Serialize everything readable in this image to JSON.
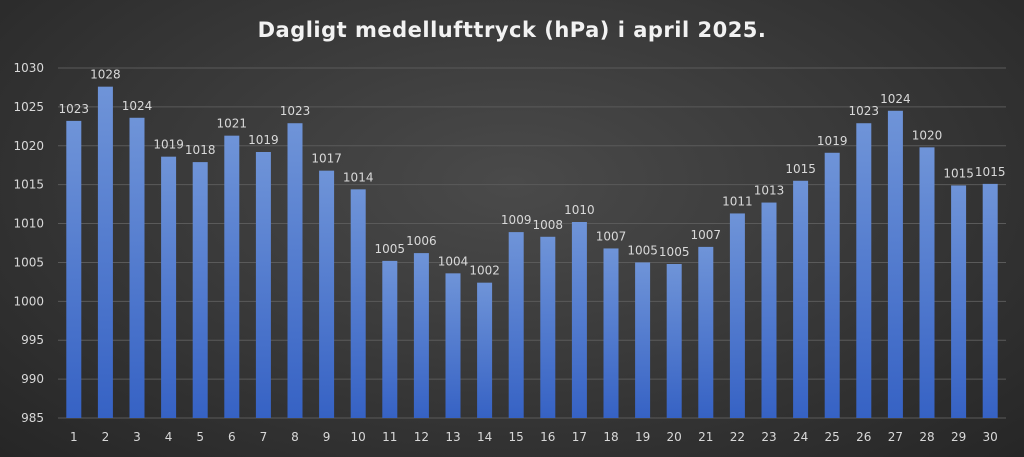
{
  "chart_data": {
    "type": "bar",
    "title": "Dagligt medellufttryck (hPa) i april 2025.",
    "xlabel": "",
    "ylabel": "",
    "ylim": [
      985,
      1030
    ],
    "ytick_step": 5,
    "grid": true,
    "categories": [
      "1",
      "2",
      "3",
      "4",
      "5",
      "6",
      "7",
      "8",
      "9",
      "10",
      "11",
      "12",
      "13",
      "14",
      "15",
      "16",
      "17",
      "18",
      "19",
      "20",
      "21",
      "22",
      "23",
      "24",
      "25",
      "26",
      "27",
      "28",
      "29",
      "30"
    ],
    "values": [
      1023.2,
      1027.6,
      1023.6,
      1018.6,
      1017.9,
      1021.3,
      1019.2,
      1022.9,
      1016.8,
      1014.4,
      1005.2,
      1006.2,
      1003.6,
      1002.4,
      1008.9,
      1008.3,
      1010.2,
      1006.8,
      1005.0,
      1004.8,
      1007.0,
      1011.3,
      1012.7,
      1015.5,
      1019.1,
      1022.9,
      1024.5,
      1019.8,
      1014.9,
      1015.1
    ],
    "data_labels": [
      "1023",
      "1028",
      "1024",
      "1019",
      "1018",
      "1021",
      "1019",
      "1023",
      "1017",
      "1014",
      "1005",
      "1006",
      "1004",
      "1002",
      "1009",
      "1008",
      "1010",
      "1007",
      "1005",
      "1005",
      "1007",
      "1011",
      "1013",
      "1015",
      "1019",
      "1023",
      "1024",
      "1020",
      "1015",
      "1015"
    ],
    "colors": {
      "bar_top": "#6f94d8",
      "bar_bottom": "#3662c4",
      "grid": "#5a5a5a",
      "text": "#d9d9d9"
    }
  }
}
